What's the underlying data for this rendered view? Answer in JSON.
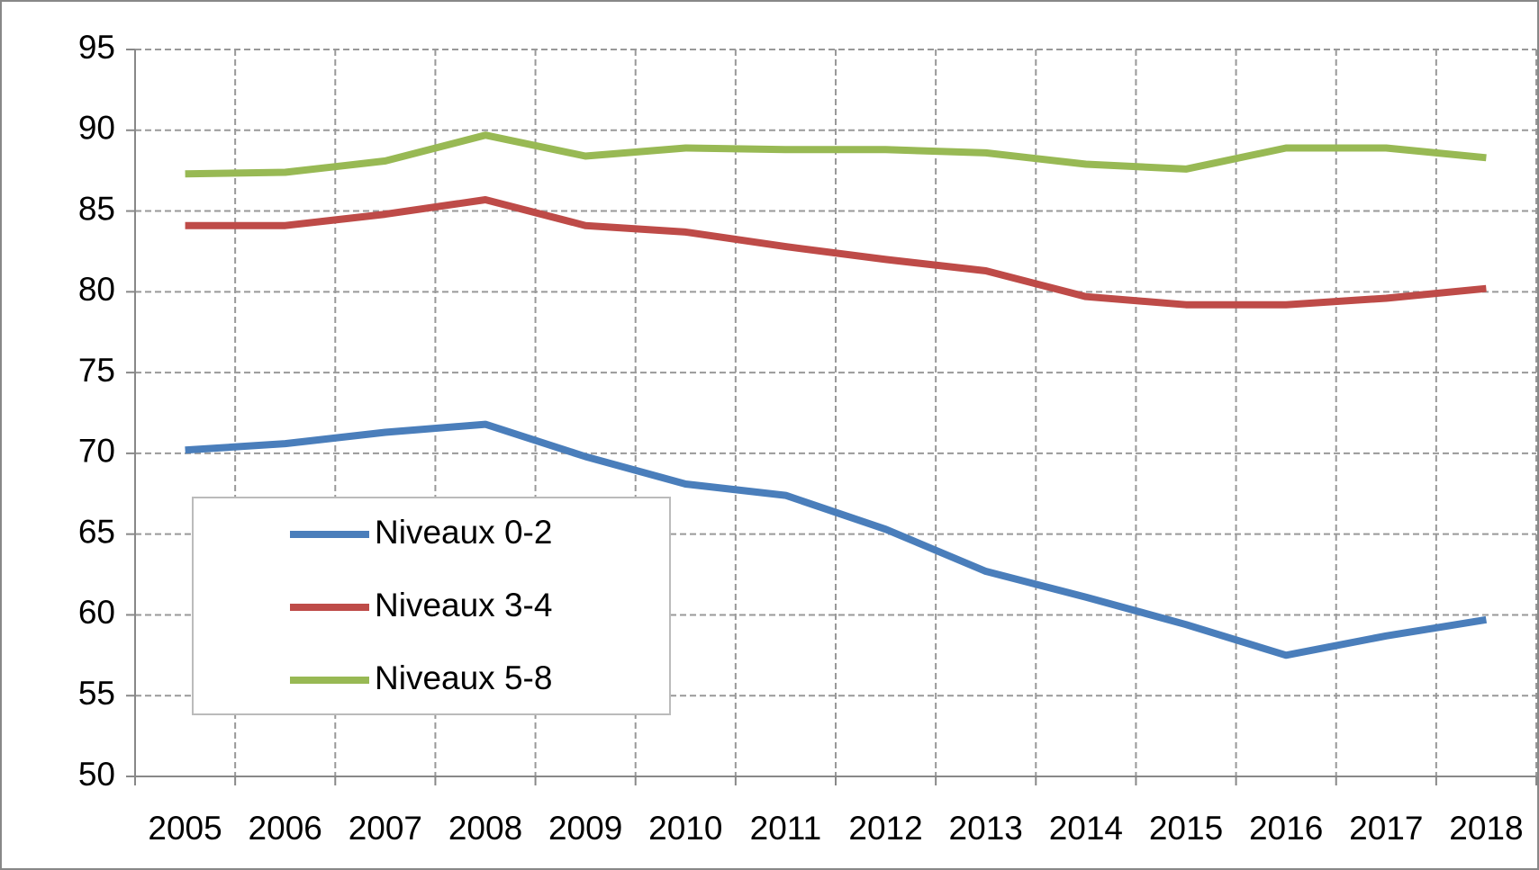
{
  "chart_data": {
    "type": "line",
    "categories": [
      "2005",
      "2006",
      "2007",
      "2008",
      "2009",
      "2010",
      "2011",
      "2012",
      "2013",
      "2014",
      "2015",
      "2016",
      "2017",
      "2018"
    ],
    "series": [
      {
        "name": "Niveaux 0-2",
        "color": "#4a7ebb",
        "values": [
          70.2,
          70.6,
          71.3,
          71.8,
          69.8,
          68.1,
          67.4,
          65.3,
          62.7,
          61.1,
          59.4,
          57.5,
          58.7,
          59.7
        ]
      },
      {
        "name": "Niveaux 3-4",
        "color": "#be4b48",
        "values": [
          84.1,
          84.1,
          84.8,
          85.7,
          84.1,
          83.7,
          82.8,
          82.0,
          81.3,
          79.7,
          79.2,
          79.2,
          79.6,
          80.2
        ]
      },
      {
        "name": "Niveaux 5-8",
        "color": "#98b954",
        "values": [
          87.3,
          87.4,
          88.1,
          89.7,
          88.4,
          88.9,
          88.8,
          88.8,
          88.6,
          87.9,
          87.6,
          88.9,
          88.9,
          88.3
        ]
      }
    ],
    "ylim": [
      50,
      95
    ],
    "yticks": [
      50,
      55,
      60,
      65,
      70,
      75,
      80,
      85,
      90,
      95
    ],
    "grid": true
  }
}
